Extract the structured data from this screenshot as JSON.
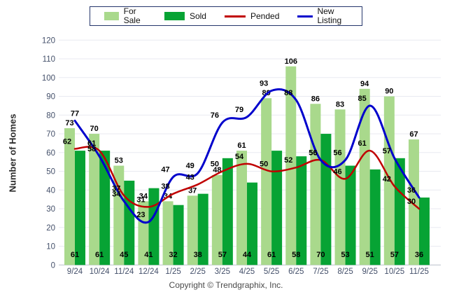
{
  "footer": {
    "copyright": "Copyright © Trendgraphix, Inc."
  },
  "chart_data": {
    "type": "bar",
    "subtype": "grouped-bars-with-smooth-lines",
    "title": "",
    "xlabel": "",
    "ylabel": "Number of Homes",
    "ylim": [
      0,
      120
    ],
    "ytick_step": 10,
    "yticks": [
      0,
      10,
      20,
      30,
      40,
      50,
      60,
      70,
      80,
      90,
      100,
      110,
      120
    ],
    "grid": true,
    "legend_position": "top-center",
    "categories": [
      "9/24",
      "10/24",
      "11/24",
      "12/24",
      "1/25",
      "2/25",
      "3/25",
      "4/25",
      "5/25",
      "6/25",
      "7/25",
      "8/25",
      "9/25",
      "10/25",
      "11/25"
    ],
    "series": [
      {
        "name": "For Sale",
        "type": "bar",
        "color": "#A9D98C",
        "values": [
          73,
          70,
          53,
          34,
          34,
          37,
          48,
          61,
          89,
          106,
          86,
          83,
          94,
          90,
          67
        ]
      },
      {
        "name": "Sold",
        "type": "bar",
        "color": "#07A334",
        "values": [
          61,
          61,
          45,
          41,
          32,
          38,
          57,
          44,
          61,
          58,
          70,
          53,
          51,
          57,
          36
        ]
      },
      {
        "name": "Pended",
        "type": "line",
        "color": "#C00000",
        "values": [
          62,
          61,
          37,
          31,
          38,
          43,
          50,
          54,
          50,
          52,
          56,
          46,
          61,
          42,
          30
        ]
      },
      {
        "name": "New Listing",
        "type": "line",
        "color": "#0000CC",
        "values": [
          77,
          58,
          34,
          23,
          47,
          49,
          76,
          79,
          93,
          88,
          56,
          56,
          85,
          57,
          36
        ]
      }
    ],
    "value_label_color": "#000000",
    "axis_text_color": "#44506a",
    "gridline_color": "#e8eaf1"
  }
}
